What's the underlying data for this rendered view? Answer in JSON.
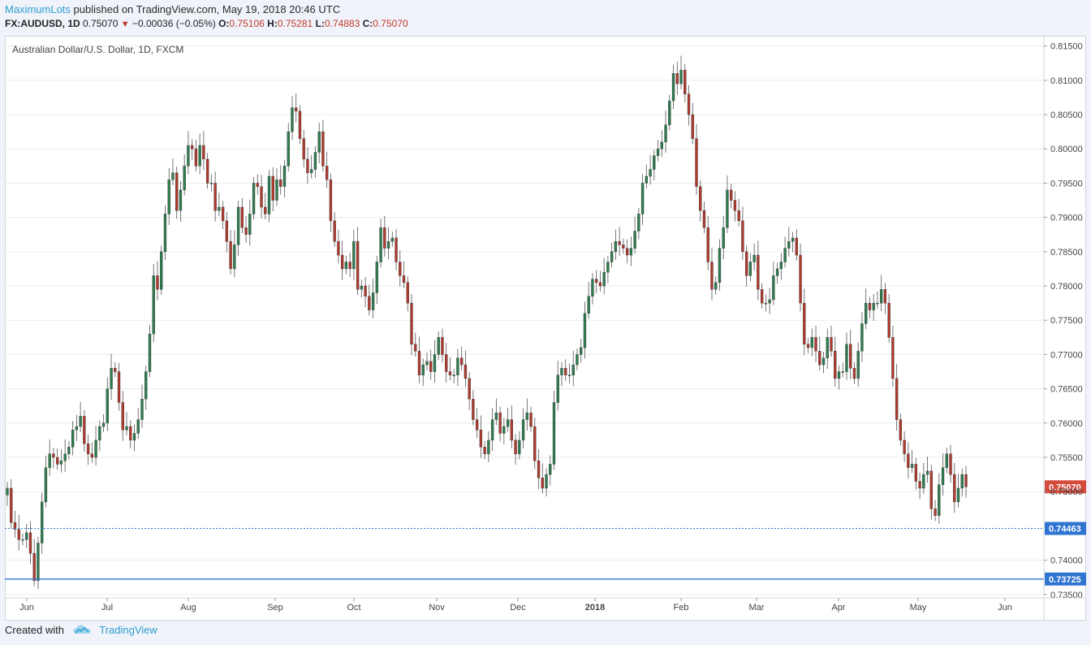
{
  "header": {
    "author": "MaximumLots",
    "published": "published on TradingView.com, May 19, 2018 20:46 UTC",
    "symbol": "FX:AUDUSD, 1D",
    "last": "0.75070",
    "arrow": "▼",
    "change": "−0.00036 (−0.05%)",
    "o_label": "O:",
    "o_value": "0.75106",
    "h_label": "H:",
    "h_value": "0.75281",
    "l_label": "L:",
    "l_value": "0.74883",
    "c_label": "C:",
    "c_value": "0.75070"
  },
  "footer": {
    "created_with": "Created with",
    "brand": "TradingView"
  },
  "colors": {
    "up": "#2e7d4f",
    "down": "#b03a2e",
    "axis_text": "#444444",
    "grid": "#e8ebef",
    "current_price_label": "#d44a3b",
    "line_blue": "#2f74d0"
  },
  "chart_data": {
    "type": "candlestick",
    "title": "Australian Dollar/U.S. Dollar, 1D, FXCM",
    "ylim": [
      0.7345,
      0.8165
    ],
    "y_ticks": [
      "0.81500",
      "0.81000",
      "0.80500",
      "0.80000",
      "0.79500",
      "0.79000",
      "0.78500",
      "0.78000",
      "0.77500",
      "0.77000",
      "0.76500",
      "0.76000",
      "0.75500",
      "0.75000",
      "0.74000",
      "0.73500"
    ],
    "x_ticks": [
      "Jun",
      "Jul",
      "Aug",
      "Sep",
      "Oct",
      "Nov",
      "Dec",
      "2018",
      "Feb",
      "Mar",
      "Apr",
      "May",
      "Jun"
    ],
    "x_tick_bold": "2018",
    "current_price": "0.75070",
    "horizontal_lines": [
      {
        "value": "0.74463",
        "style": "dotted"
      },
      {
        "value": "0.73725",
        "style": "solid"
      }
    ],
    "close_series": [
      0.7505,
      0.7455,
      0.7445,
      0.743,
      0.743,
      0.744,
      0.741,
      0.737,
      0.7425,
      0.7485,
      0.7535,
      0.7555,
      0.755,
      0.754,
      0.7545,
      0.7555,
      0.7565,
      0.759,
      0.7595,
      0.761,
      0.757,
      0.7555,
      0.755,
      0.7575,
      0.7595,
      0.76,
      0.765,
      0.768,
      0.7675,
      0.763,
      0.759,
      0.7595,
      0.7575,
      0.7585,
      0.7605,
      0.7635,
      0.7675,
      0.773,
      0.7815,
      0.7795,
      0.785,
      0.7905,
      0.7955,
      0.7965,
      0.791,
      0.794,
      0.7975,
      0.8005,
      0.8,
      0.7975,
      0.8005,
      0.7985,
      0.795,
      0.795,
      0.791,
      0.7915,
      0.7895,
      0.7865,
      0.7825,
      0.786,
      0.7915,
      0.7885,
      0.7875,
      0.7905,
      0.795,
      0.7945,
      0.7915,
      0.7905,
      0.796,
      0.7925,
      0.7955,
      0.7945,
      0.7975,
      0.8025,
      0.806,
      0.8055,
      0.8015,
      0.7985,
      0.7965,
      0.797,
      0.7995,
      0.8025,
      0.7975,
      0.7955,
      0.7895,
      0.7865,
      0.7845,
      0.7825,
      0.7835,
      0.7825,
      0.7865,
      0.7795,
      0.78,
      0.7785,
      0.7765,
      0.779,
      0.7835,
      0.7885,
      0.7855,
      0.7865,
      0.787,
      0.7835,
      0.7815,
      0.7805,
      0.7775,
      0.7715,
      0.7705,
      0.767,
      0.7685,
      0.769,
      0.7675,
      0.77,
      0.7725,
      0.77,
      0.7675,
      0.767,
      0.767,
      0.7695,
      0.7685,
      0.7665,
      0.7635,
      0.7605,
      0.759,
      0.7565,
      0.7555,
      0.7575,
      0.7605,
      0.7615,
      0.7585,
      0.7595,
      0.7605,
      0.7575,
      0.7555,
      0.7575,
      0.7605,
      0.7615,
      0.7595,
      0.7545,
      0.752,
      0.7505,
      0.7525,
      0.754,
      0.763,
      0.767,
      0.768,
      0.767,
      0.767,
      0.7685,
      0.77,
      0.771,
      0.776,
      0.7785,
      0.781,
      0.7805,
      0.78,
      0.782,
      0.7835,
      0.785,
      0.7865,
      0.786,
      0.7855,
      0.7845,
      0.7855,
      0.788,
      0.7905,
      0.795,
      0.796,
      0.797,
      0.799,
      0.8,
      0.801,
      0.8035,
      0.807,
      0.811,
      0.8095,
      0.8115,
      0.808,
      0.805,
      0.8015,
      0.7945,
      0.791,
      0.7885,
      0.7835,
      0.7795,
      0.7805,
      0.7855,
      0.7885,
      0.794,
      0.7925,
      0.791,
      0.7895,
      0.785,
      0.7815,
      0.7835,
      0.7845,
      0.7795,
      0.7775,
      0.7775,
      0.778,
      0.7815,
      0.7825,
      0.7835,
      0.7855,
      0.7865,
      0.787,
      0.7845,
      0.7775,
      0.7715,
      0.771,
      0.7725,
      0.7705,
      0.7685,
      0.7695,
      0.7725,
      0.7705,
      0.7665,
      0.7675,
      0.7675,
      0.7715,
      0.768,
      0.7665,
      0.7705,
      0.7745,
      0.7775,
      0.7765,
      0.7775,
      0.7775,
      0.7795,
      0.7775,
      0.7725,
      0.7665,
      0.7605,
      0.7575,
      0.7555,
      0.7535,
      0.754,
      0.7515,
      0.7505,
      0.7525,
      0.753,
      0.7475,
      0.7465,
      0.751,
      0.7535,
      0.7555,
      0.7525,
      0.7485,
      0.7505,
      0.7525,
      0.7507
    ]
  }
}
